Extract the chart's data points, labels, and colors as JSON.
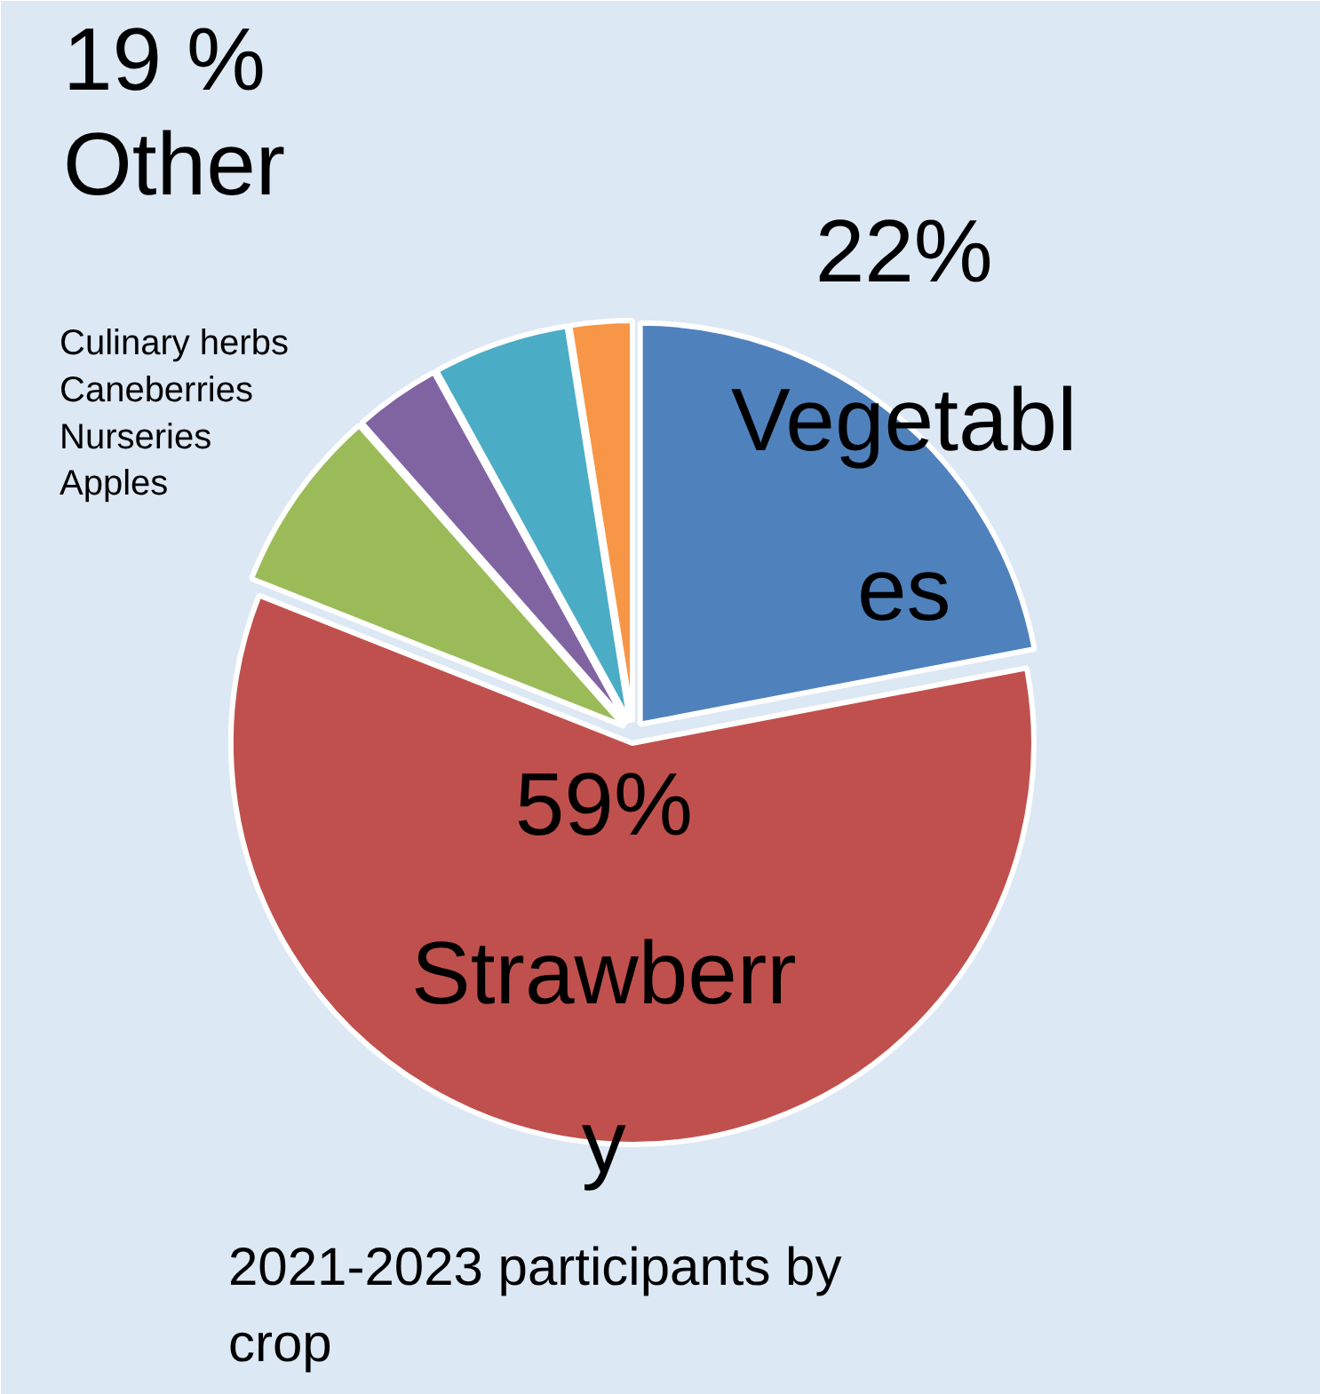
{
  "chart_data": {
    "type": "pie",
    "title": "2021-2023 participants by crop",
    "categories": [
      "Vegetables",
      "Strawberry",
      null,
      null,
      null,
      null
    ],
    "values": [
      22,
      59,
      7.5,
      3.5,
      5.5,
      2.5
    ],
    "colors": [
      "#4f81bd",
      "#c0504d",
      "#9bbb59",
      "#8064a2",
      "#4bacc6",
      "#f79646"
    ],
    "annotations": [
      "19 %\nOther",
      "Culinary herbs\nCaneberries\nNurseries\nApples"
    ],
    "value_labels": [
      "22%",
      "59%",
      null,
      null,
      null,
      null
    ]
  }
}
